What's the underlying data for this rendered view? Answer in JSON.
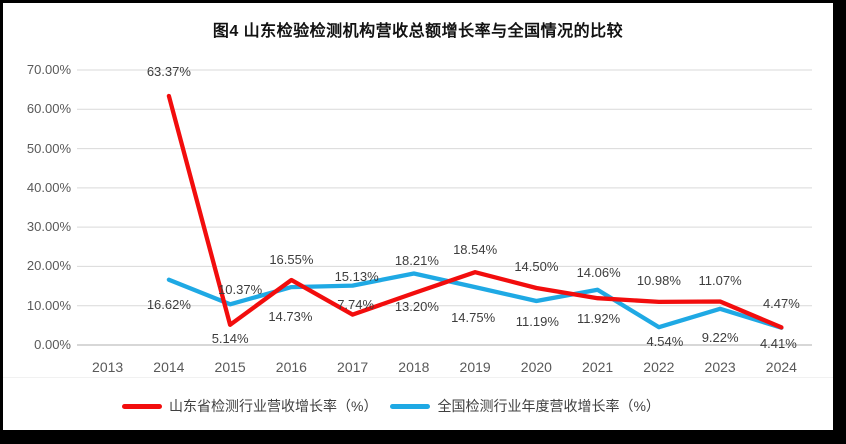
{
  "title": "图4  山东检验检测机构营收总额增长率与全国情况的比较",
  "colors": {
    "frame_background": "#000000",
    "chart_background": "#FFFFFF",
    "gridline": "#D9D9D9",
    "axis_line": "#BFBFBF",
    "tick_label": "#595959",
    "data_label": "#3D3D3D",
    "shandong_red": "#F20D0D",
    "national_blue": "#1FA9E4"
  },
  "chart_data": {
    "type": "line",
    "title": "图4  山东检验检测机构营收总额增长率与全国情况的比较",
    "categories": [
      "2013",
      "2014",
      "2015",
      "2016",
      "2017",
      "2018",
      "2019",
      "2020",
      "2021",
      "2022",
      "2023",
      "2024"
    ],
    "y_axis": {
      "min": 0,
      "max": 70,
      "step": 10,
      "tick_labels": [
        "0.00%",
        "10.00%",
        "20.00%",
        "30.00%",
        "40.00%",
        "50.00%",
        "60.00%",
        "70.00%"
      ]
    },
    "grid": true,
    "legend_position": "bottom",
    "series": [
      {
        "name": "山东省检测行业营收增长率（%）",
        "color": "#F20D0D",
        "values": [
          null,
          63.37,
          5.14,
          16.55,
          7.74,
          13.2,
          18.54,
          14.5,
          11.92,
          10.98,
          11.07,
          4.47
        ],
        "data_labels": [
          null,
          "63.37%",
          "5.14%",
          "16.55%",
          "7.74%",
          "13.20%",
          "18.54%",
          "14.50%",
          "11.92%",
          "10.98%",
          "11.07%",
          "4.47%"
        ],
        "label_offsets": [
          null,
          [
            0,
            -24
          ],
          [
            0,
            14
          ],
          [
            0,
            -20
          ],
          [
            3,
            -10
          ],
          [
            3,
            14
          ],
          [
            0,
            -22
          ],
          [
            0,
            -21
          ],
          [
            1,
            21
          ],
          [
            0,
            -21
          ],
          [
            0,
            -21
          ],
          [
            0,
            -23
          ]
        ]
      },
      {
        "name": "全国检测行业年度营收增长率（%）",
        "color": "#1FA9E4",
        "values": [
          null,
          16.62,
          10.37,
          14.73,
          15.13,
          18.21,
          14.75,
          11.19,
          14.06,
          4.54,
          9.22,
          4.41
        ],
        "data_labels": [
          null,
          "16.62%",
          "10.37%",
          "14.73%",
          "15.13%",
          "18.21%",
          "14.75%",
          "11.19%",
          "14.06%",
          "4.54%",
          "9.22%",
          "4.41%"
        ],
        "label_offsets": [
          null,
          [
            0,
            25
          ],
          [
            10,
            -14
          ],
          [
            -1,
            30
          ],
          [
            4,
            -9
          ],
          [
            3,
            -12
          ],
          [
            -2,
            31
          ],
          [
            1,
            21
          ],
          [
            1,
            -17
          ],
          [
            6,
            15
          ],
          [
            0,
            29
          ],
          [
            -3,
            16
          ]
        ]
      }
    ]
  }
}
